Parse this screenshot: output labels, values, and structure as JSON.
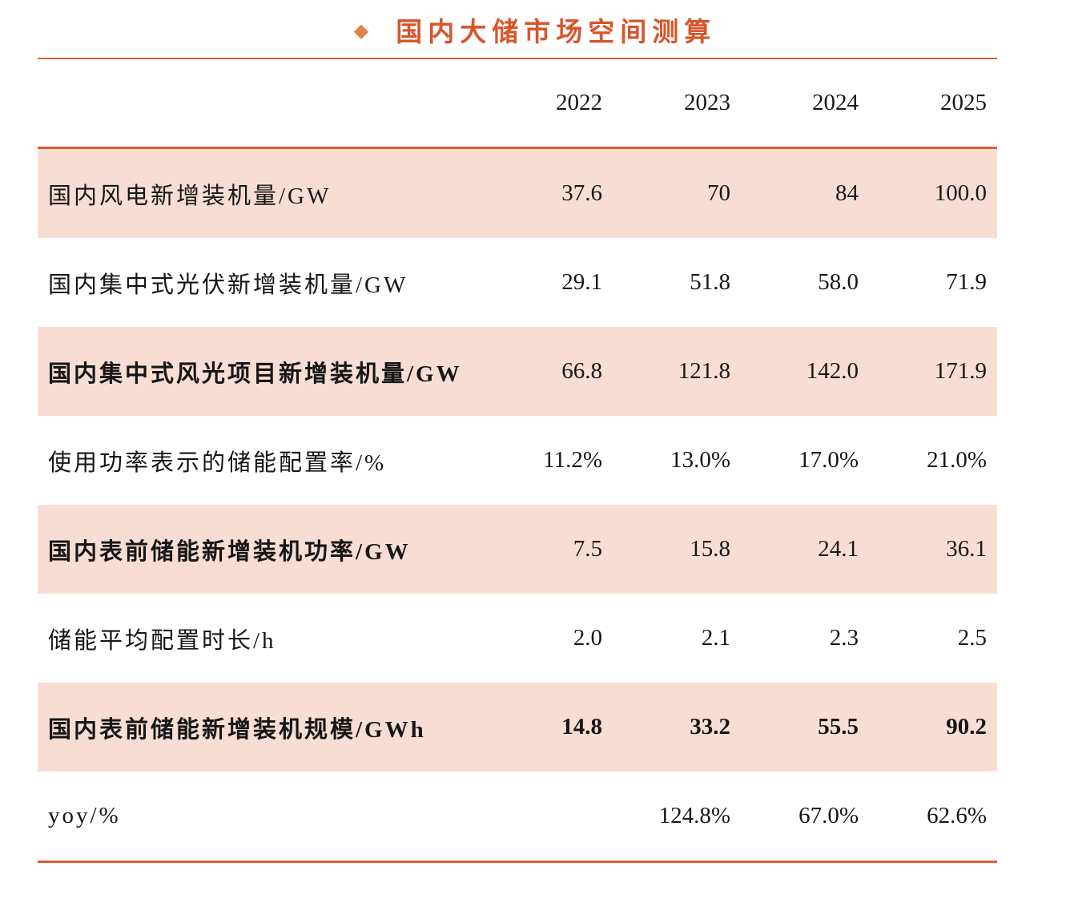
{
  "title": {
    "bullet": "◆",
    "text": "国内大储市场空间测算"
  },
  "table": {
    "columns": [
      "2022",
      "2023",
      "2024",
      "2025"
    ],
    "rows": [
      {
        "label": "国内风电新增装机量/GW",
        "values": [
          "37.6",
          "70",
          "84",
          "100.0"
        ],
        "bold": false,
        "bold_values": false,
        "shaded": true
      },
      {
        "label": "国内集中式光伏新增装机量/GW",
        "values": [
          "29.1",
          "51.8",
          "58.0",
          "71.9"
        ],
        "bold": false,
        "bold_values": false,
        "shaded": false
      },
      {
        "label": "国内集中式风光项目新增装机量/GW",
        "values": [
          "66.8",
          "121.8",
          "142.0",
          "171.9"
        ],
        "bold": true,
        "bold_values": false,
        "shaded": true
      },
      {
        "label": "使用功率表示的储能配置率/%",
        "values": [
          "11.2%",
          "13.0%",
          "17.0%",
          "21.0%"
        ],
        "bold": false,
        "bold_values": false,
        "shaded": false
      },
      {
        "label": "国内表前储能新增装机功率/GW",
        "values": [
          "7.5",
          "15.8",
          "24.1",
          "36.1"
        ],
        "bold": true,
        "bold_values": false,
        "shaded": true
      },
      {
        "label": "储能平均配置时长/h",
        "values": [
          "2.0",
          "2.1",
          "2.3",
          "2.5"
        ],
        "bold": false,
        "bold_values": false,
        "shaded": false
      },
      {
        "label": "国内表前储能新增装机规模/GWh",
        "values": [
          "14.8",
          "33.2",
          "55.5",
          "90.2"
        ],
        "bold": true,
        "bold_values": true,
        "shaded": true
      },
      {
        "label": "yoy/%",
        "values": [
          "",
          "124.8%",
          "67.0%",
          "62.6%"
        ],
        "bold": false,
        "bold_values": false,
        "shaded": false
      }
    ]
  },
  "colors": {
    "accent": "#E15C33",
    "title_text": "#D8552A",
    "bullet": "#E28147",
    "row_shade": "#F8DED2",
    "text": "#161616"
  }
}
